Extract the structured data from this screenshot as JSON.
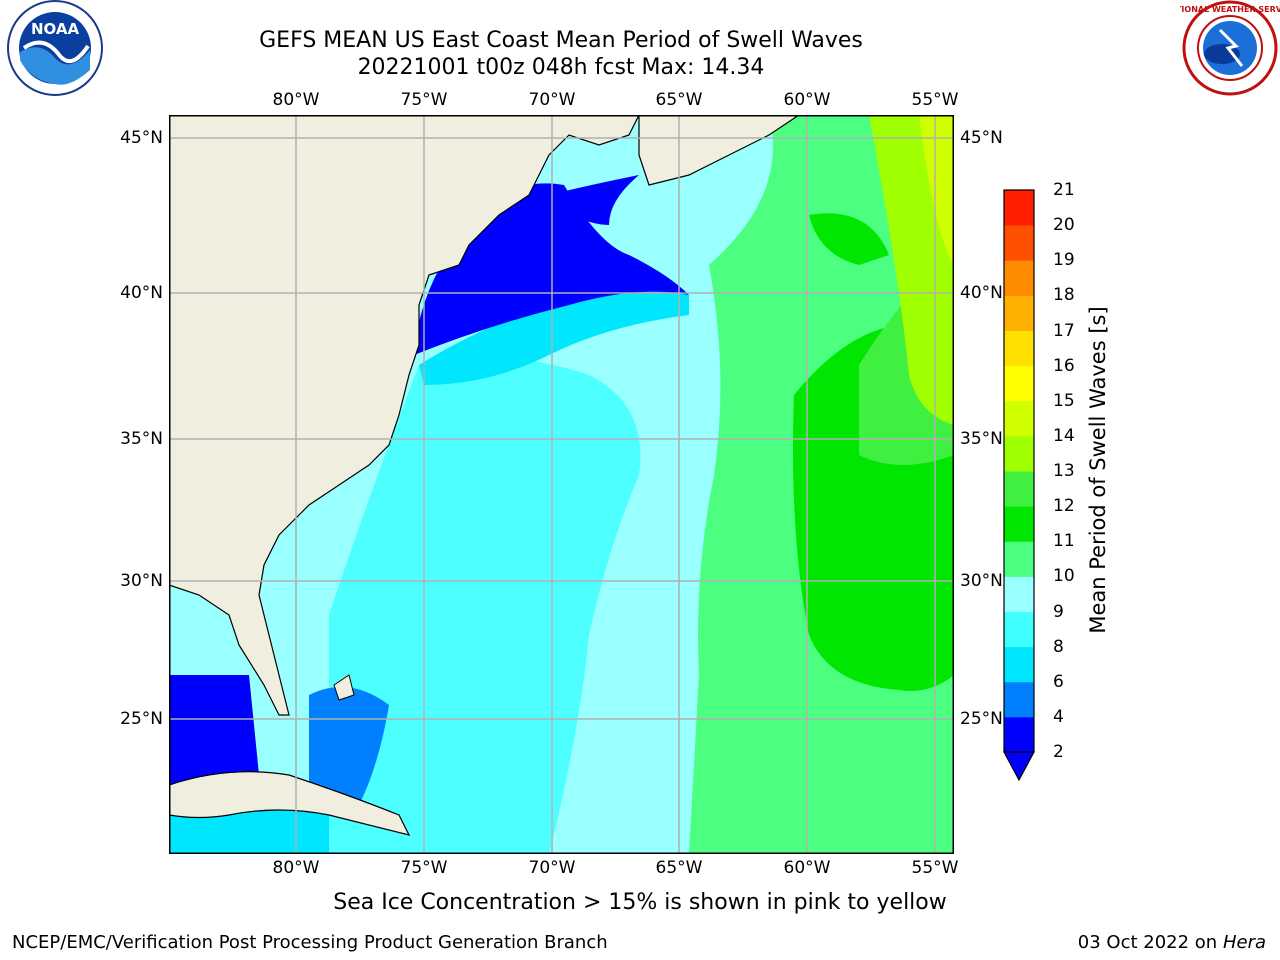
{
  "header": {
    "title_line1": "GEFS MEAN US East Coast Mean Period of Swell Waves",
    "title_line2": "20221001 t00z 048h fcst   Max: 14.34"
  },
  "logos": {
    "left": "noaa-logo",
    "right": "national-weather-service-logo",
    "left_text": "NATIONAL OCEANIC AND ATMOSPHERIC ADMINISTRATION · U.S. DEPARTMENT OF COMMERCE",
    "left_center_text": "NOAA",
    "right_text": "NATIONAL WEATHER SERVICE"
  },
  "map": {
    "lon_labels": [
      "80°W",
      "75°W",
      "70°W",
      "65°W",
      "60°W",
      "55°W"
    ],
    "lat_labels": [
      "45°N",
      "40°N",
      "35°N",
      "30°N",
      "25°N"
    ],
    "lon_range": [
      -85,
      -54.2
    ],
    "lat_range": [
      20.3,
      45.8
    ],
    "colors": {
      "land": "#efeedf",
      "gridline": "#b0b0b0",
      "coast": "#000000"
    }
  },
  "colorbar": {
    "title": "Mean Period of Swell Waves [s]",
    "ticks": [
      "2",
      "4",
      "6",
      "8",
      "9",
      "10",
      "11",
      "12",
      "13",
      "14",
      "15",
      "16",
      "17",
      "18",
      "19",
      "20",
      "21"
    ],
    "colors": [
      "#0000ff",
      "#0080ff",
      "#00e6ff",
      "#40ffff",
      "#99ffff",
      "#4dff80",
      "#00e600",
      "#40f040",
      "#a0ff00",
      "#d0ff00",
      "#ffff00",
      "#ffe000",
      "#ffb000",
      "#ff8c00",
      "#ff5000",
      "#ff2000",
      "#ff0000"
    ],
    "extend_below_color": "#0000ff"
  },
  "caption": "Sea Ice Concentration > 15% is shown in pink to yellow",
  "footer": {
    "left": "NCEP/EMC/Verification Post Processing Product Generation Branch",
    "right_prefix": "03 Oct 2022 on ",
    "right_host": "Hera"
  }
}
